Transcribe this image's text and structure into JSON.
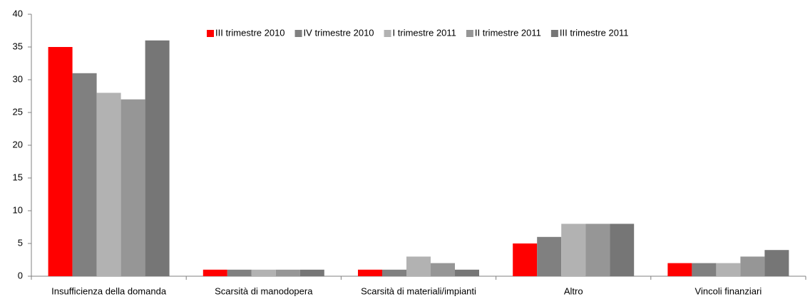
{
  "chart_data": {
    "type": "bar",
    "categories": [
      "Insufficienza della domanda",
      "Scarsità di manodopera",
      "Scarsità di materiali/impianti",
      "Altro",
      "Vincoli finanziari"
    ],
    "series": [
      {
        "name": "III trimestre 2010",
        "color": "#ff0000",
        "values": [
          35,
          1,
          1,
          5,
          2
        ]
      },
      {
        "name": "IV trimestre 2010",
        "color": "#808080",
        "values": [
          31,
          1,
          1,
          6,
          2
        ]
      },
      {
        "name": "I trimestre 2011",
        "color": "#b2b2b2",
        "values": [
          28,
          1,
          3,
          8,
          2
        ]
      },
      {
        "name": "II trimestre 2011",
        "color": "#969696",
        "values": [
          27,
          1,
          2,
          8,
          3
        ]
      },
      {
        "name": "III trimestre 2011",
        "color": "#767676",
        "values": [
          36,
          1,
          1,
          8,
          4
        ]
      }
    ],
    "ylim": [
      0,
      40
    ],
    "yticks": [
      0,
      5,
      10,
      15,
      20,
      25,
      30,
      35,
      40
    ],
    "legend": "top"
  }
}
